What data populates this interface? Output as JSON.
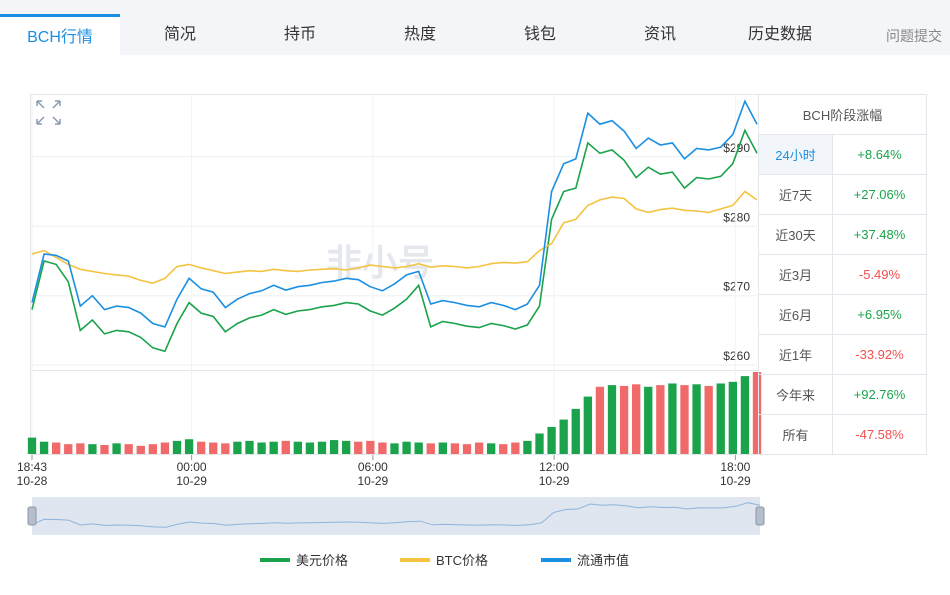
{
  "tabs": [
    "BCH行情",
    "简况",
    "持币",
    "热度",
    "钱包",
    "资讯",
    "历史数据"
  ],
  "feedback": "问题提交",
  "chart_data": {
    "type": "line",
    "watermark": "非小号",
    "x": [
      0,
      0.4,
      0.8,
      1.2,
      1.6,
      2,
      2.4,
      2.8,
      3.2,
      3.6,
      4,
      4.4,
      4.8,
      5.2,
      5.6,
      6,
      6.4,
      6.8,
      7.2,
      7.6,
      8,
      8.4,
      8.8,
      9.2,
      9.6,
      10,
      10.4,
      10.8,
      11.2,
      11.6,
      12,
      12.4,
      12.8,
      13.2,
      13.6,
      14,
      14.4,
      14.8,
      15.2,
      15.6,
      16,
      16.4,
      16.8,
      17.2,
      17.6,
      18,
      18.4,
      18.8,
      19.2,
      19.6,
      20,
      20.4,
      20.8,
      21.2,
      21.6,
      22,
      22.4,
      22.8,
      23.2,
      23.6,
      24
    ],
    "xlim": [
      0,
      24
    ],
    "xticks": [
      {
        "value": 0,
        "label": "18:43\n10-28"
      },
      {
        "value": 5.283,
        "label": "00:00\n10-29"
      },
      {
        "value": 11.283,
        "label": "06:00\n10-29"
      },
      {
        "value": 17.283,
        "label": "12:00\n10-29"
      },
      {
        "value": 23.283,
        "label": "18:00\n10-29"
      }
    ],
    "ylim": [
      259.3,
      298.9
    ],
    "yticks": [
      {
        "value": 260,
        "label": "$260"
      },
      {
        "value": 270,
        "label": "$270"
      },
      {
        "value": 280,
        "label": "$280"
      },
      {
        "value": 290,
        "label": "$290"
      }
    ],
    "grid": true,
    "series": [
      {
        "name": "美元价格",
        "color": "#1aa34a",
        "values": [
          268.0,
          275.0,
          274.5,
          272.0,
          265.0,
          266.5,
          264.5,
          265.0,
          264.8,
          264.0,
          262.5,
          262.0,
          266.0,
          269.0,
          267.5,
          267.0,
          264.8,
          266.0,
          266.8,
          267.2,
          268.0,
          267.3,
          267.8,
          268.0,
          268.4,
          268.6,
          269.0,
          268.8,
          267.8,
          267.2,
          268.2,
          269.5,
          271.5,
          265.5,
          266.3,
          266.0,
          265.6,
          265.4,
          266.0,
          265.7,
          265.2,
          265.8,
          268.5,
          281.0,
          285.0,
          285.5,
          292.0,
          290.5,
          291.0,
          289.5,
          287.0,
          288.5,
          287.5,
          287.8,
          285.5,
          287.0,
          286.8,
          287.2,
          289.0,
          293.8,
          290.5
        ]
      },
      {
        "name": "BTC价格",
        "color": "#f5c342",
        "values": [
          276.0,
          276.5,
          275.5,
          274.5,
          273.8,
          273.5,
          273.2,
          273.0,
          272.8,
          272.2,
          271.8,
          272.5,
          274.2,
          274.5,
          274.0,
          273.6,
          273.2,
          273.4,
          273.6,
          273.5,
          273.8,
          273.6,
          273.5,
          273.7,
          273.8,
          273.9,
          273.7,
          274.0,
          274.4,
          274.2,
          274.0,
          274.2,
          274.6,
          274.1,
          274.3,
          274.2,
          274.0,
          274.2,
          274.6,
          274.8,
          274.7,
          274.9,
          276.5,
          277.5,
          280.5,
          281.0,
          283.0,
          283.8,
          284.2,
          284.0,
          282.5,
          282.0,
          282.4,
          282.6,
          282.3,
          282.2,
          282.0,
          282.5,
          283.0,
          285.0,
          283.8
        ]
      },
      {
        "name": "流通市值",
        "color": "#1a8fe3",
        "values": [
          269.0,
          276.0,
          275.8,
          275.0,
          268.5,
          270.0,
          268.0,
          268.5,
          268.3,
          267.5,
          266.0,
          265.5,
          269.5,
          272.5,
          271.0,
          270.5,
          268.3,
          269.5,
          270.3,
          270.7,
          271.5,
          270.8,
          271.3,
          271.5,
          271.9,
          272.1,
          272.5,
          272.3,
          271.3,
          270.7,
          271.7,
          273.0,
          273.5,
          268.8,
          269.3,
          269.0,
          268.6,
          268.4,
          269.0,
          268.6,
          268.0,
          268.8,
          271.5,
          285.0,
          289.0,
          289.7,
          296.3,
          294.7,
          295.2,
          293.7,
          291.2,
          292.7,
          291.7,
          292.0,
          289.7,
          291.2,
          291.0,
          291.4,
          293.2,
          298.0,
          294.7
        ]
      }
    ],
    "volume": {
      "values": [
        20,
        15,
        14,
        12,
        13,
        12,
        11,
        13,
        12,
        10,
        12,
        14,
        16,
        18,
        15,
        14,
        13,
        15,
        16,
        14,
        15,
        16,
        15,
        14,
        15,
        17,
        16,
        15,
        16,
        14,
        13,
        15,
        14,
        13,
        14,
        13,
        12,
        14,
        13,
        12,
        14,
        16,
        25,
        33,
        42,
        55,
        70,
        82,
        84,
        83,
        85,
        82,
        84,
        86,
        84,
        85,
        83,
        86,
        88,
        95,
        100
      ],
      "ylim": [
        0,
        100
      ],
      "up_color": "#1aa34a",
      "down_color": "#f06a6a"
    }
  },
  "change_table": {
    "title": "BCH阶段涨幅",
    "rows": [
      [
        "24小时",
        "+8.64%"
      ],
      [
        "近7天",
        "+27.06%"
      ],
      [
        "近30天",
        "+37.48%"
      ],
      [
        "近3月",
        "-5.49%"
      ],
      [
        "近6月",
        "+6.95%"
      ],
      [
        "近1年",
        "-33.92%"
      ],
      [
        "今年来",
        "+92.76%"
      ],
      [
        "所有",
        "-47.58%"
      ]
    ]
  }
}
